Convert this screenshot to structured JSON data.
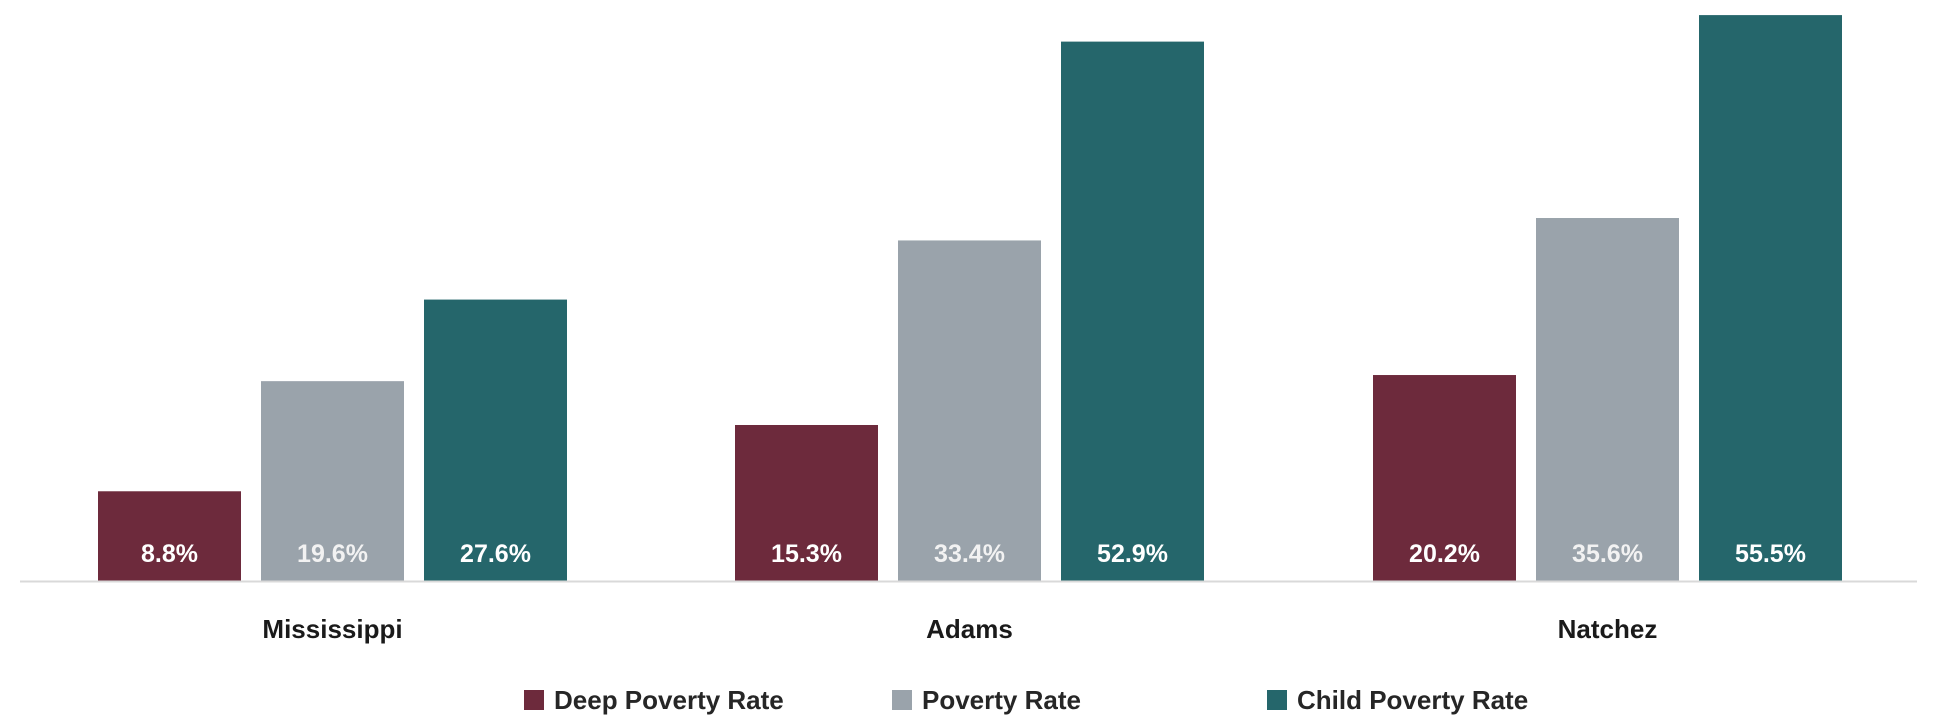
{
  "chart_data": {
    "type": "bar",
    "categories": [
      "Mississippi",
      "Adams",
      "Natchez"
    ],
    "series": [
      {
        "name": "Deep Poverty Rate",
        "values": [
          8.8,
          15.3,
          20.2
        ],
        "labels": [
          "8.8%",
          "15.3%",
          "20.2%"
        ],
        "color": "#6d2a3c"
      },
      {
        "name": "Poverty Rate",
        "values": [
          19.6,
          33.4,
          35.6
        ],
        "labels": [
          "19.6%",
          "33.4%",
          "35.6%"
        ],
        "color": "#9aa3ab"
      },
      {
        "name": "Child Poverty Rate",
        "values": [
          27.6,
          52.9,
          55.5
        ],
        "labels": [
          "27.6%",
          "52.9%",
          "55.5%"
        ],
        "color": "#25666b"
      }
    ],
    "ylim": [
      0,
      56
    ],
    "grid": false,
    "legend_position": "bottom-center",
    "axis_color": "#d9d9d9"
  }
}
